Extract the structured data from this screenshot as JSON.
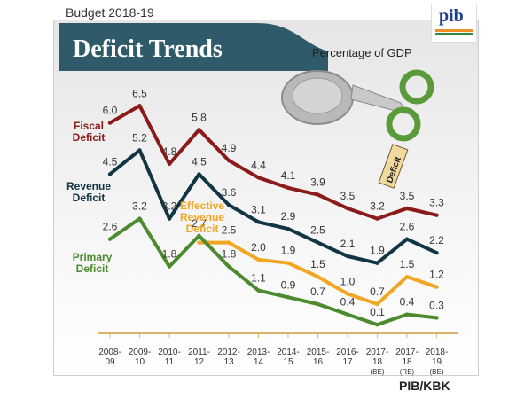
{
  "header": {
    "budget_label": "Budget 2018-19",
    "source_label": "PIB/KBK",
    "logo_text": "pib"
  },
  "colors": {
    "fiscal": "#8b1a1a",
    "revenue": "#123544",
    "effective": "#f2a623",
    "primary": "#4c8a2e",
    "banner": "#2f5a6a",
    "label_fiscal": "#8b1a1a",
    "label_revenue": "#123544",
    "label_effective": "#f2a623",
    "label_primary": "#4c8a2e"
  },
  "chart_data": {
    "type": "line",
    "title": "Deficit Trends",
    "subtitle": "Percentage of GDP",
    "categories": [
      "2008-09",
      "2009-10",
      "2010-11",
      "2011-12",
      "2012-13",
      "2013-14",
      "2014-15",
      "2015-16",
      "2016-17",
      "2017-18 (BE)",
      "2017-18 (RE)",
      "2018-19 (BE)"
    ],
    "categories_lines": [
      [
        "2008-",
        "09"
      ],
      [
        "2009-",
        "10"
      ],
      [
        "2010-",
        "11"
      ],
      [
        "2011-",
        "12"
      ],
      [
        "2012-",
        "13"
      ],
      [
        "2013-",
        "14"
      ],
      [
        "2014-",
        "15"
      ],
      [
        "2015-",
        "16"
      ],
      [
        "2016-",
        "17"
      ],
      [
        "2017-",
        "18",
        "(BE)"
      ],
      [
        "2017-",
        "18",
        "(RE)"
      ],
      [
        "2018-",
        "19",
        "(BE)"
      ]
    ],
    "series": [
      {
        "key": "fiscal",
        "name": "Fiscal Deficit",
        "name_lines": [
          "Fiscal",
          "Deficit"
        ],
        "values": [
          6.0,
          6.5,
          4.8,
          5.8,
          4.9,
          4.4,
          4.1,
          3.9,
          3.5,
          3.2,
          3.5,
          3.3
        ],
        "labels": [
          "6.0",
          "6.5",
          "4.8",
          "5.8",
          "4.9",
          "4.4",
          "4.1",
          "3.9",
          "3.5",
          "3.2",
          "3.5",
          "3.3"
        ]
      },
      {
        "key": "revenue",
        "name": "Revenue Deficit",
        "name_lines": [
          "Revenue",
          "Deficit"
        ],
        "values": [
          4.5,
          5.2,
          3.2,
          4.5,
          3.6,
          3.1,
          2.9,
          2.5,
          2.1,
          1.9,
          2.6,
          2.2
        ],
        "labels": [
          "4.5",
          "5.2",
          "3.2",
          "4.5",
          "3.6",
          "3.1",
          "2.9",
          "2.5",
          "2.1",
          "1.9",
          "2.6",
          "2.2"
        ]
      },
      {
        "key": "effective",
        "name": "Effective Revenue Deficit",
        "name_lines": [
          "Effective",
          "Revenue",
          "Deficit"
        ],
        "values": [
          null,
          null,
          null,
          2.5,
          2.5,
          2.0,
          1.9,
          1.5,
          1.0,
          0.7,
          1.5,
          1.2
        ],
        "labels": [
          null,
          null,
          null,
          null,
          "2.5",
          "2.0",
          "1.9",
          "1.5",
          "1.0",
          "0.7",
          "1.5",
          "1.2"
        ]
      },
      {
        "key": "primary",
        "name": "Primary Deficit",
        "name_lines": [
          "Primary",
          "Deficit"
        ],
        "values": [
          2.6,
          3.2,
          1.8,
          2.7,
          1.8,
          1.1,
          0.9,
          0.7,
          0.4,
          0.1,
          0.4,
          0.3
        ],
        "labels": [
          "2.6",
          "3.2",
          "1.8",
          "2.7",
          "1.8",
          "1.1",
          "0.9",
          "0.7",
          "0.4",
          "0.1",
          "0.4",
          "0.3"
        ]
      }
    ],
    "illustration_text": "Deficit",
    "ylim": [
      0,
      7
    ],
    "grid": false
  }
}
